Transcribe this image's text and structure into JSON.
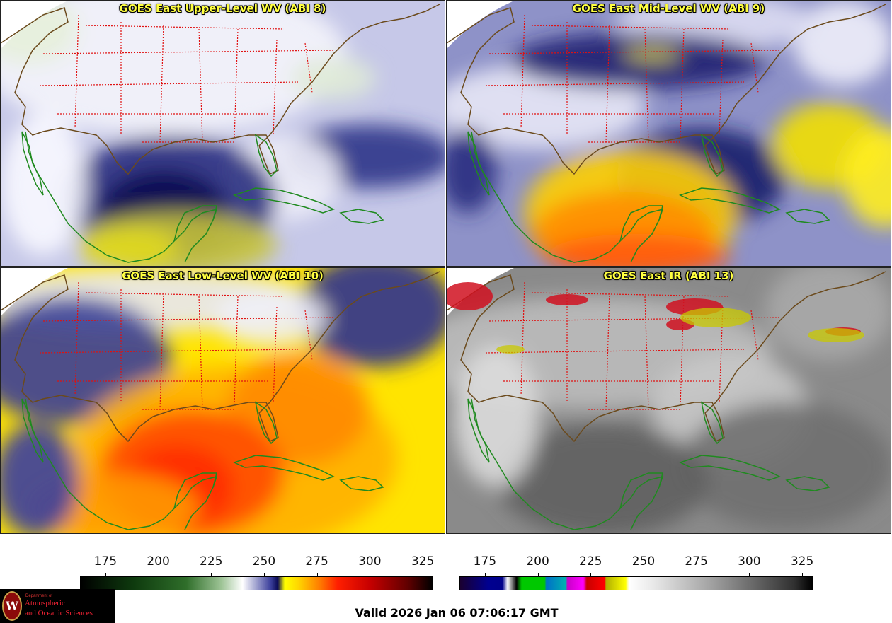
{
  "panels": [
    {
      "id": "p1",
      "title": "GOES East Upper-Level WV (ABI 8)",
      "scheme": "wv",
      "base": "#c6c8e8",
      "blobs": [
        [
          "#f4f4fb",
          230,
          80,
          260,
          110
        ],
        [
          "#e6f0dc",
          40,
          40,
          70,
          50
        ],
        [
          "#dfead7",
          470,
          110,
          60,
          30
        ],
        [
          "#2e3488",
          520,
          220,
          120,
          45
        ],
        [
          "#f0f0f8",
          400,
          250,
          80,
          60
        ],
        [
          "#2a2f80",
          240,
          280,
          150,
          90
        ],
        [
          "#0c0e50",
          230,
          300,
          90,
          60
        ],
        [
          "#c8c43a",
          250,
          345,
          140,
          45
        ],
        [
          "#e0d820",
          180,
          350,
          70,
          30
        ],
        [
          "#f8f8ff",
          60,
          260,
          60,
          100
        ]
      ]
    },
    {
      "id": "p2",
      "title": "GOES East Mid-Level WV (ABI 9)",
      "scheme": "wv",
      "base": "#8e92c8",
      "blobs": [
        [
          "#e8e8f6",
          130,
          150,
          150,
          60
        ],
        [
          "#f0f0fa",
          560,
          60,
          70,
          60
        ],
        [
          "#ddddf2",
          380,
          30,
          140,
          40
        ],
        [
          "#1c1f70",
          270,
          85,
          180,
          40
        ],
        [
          "#d0c840",
          290,
          75,
          40,
          10
        ],
        [
          "#1a1e6a",
          360,
          250,
          120,
          70
        ],
        [
          "#f2e000",
          540,
          205,
          80,
          60
        ],
        [
          "#ffd000",
          260,
          300,
          150,
          90
        ],
        [
          "#ff8c00",
          250,
          330,
          130,
          60
        ],
        [
          "#ff5a10",
          270,
          360,
          130,
          30
        ],
        [
          "#ffee20",
          620,
          250,
          60,
          70
        ],
        [
          "#2a2f80",
          30,
          240,
          40,
          60
        ]
      ]
    },
    {
      "id": "p3",
      "title": "GOES East Low-Level WV (ABI 10)",
      "scheme": "wv",
      "base": "#ffe400",
      "blobs": [
        [
          "#e8e8f4",
          200,
          45,
          240,
          45
        ],
        [
          "#3a3f98",
          100,
          130,
          140,
          90
        ],
        [
          "#2d3290",
          530,
          60,
          110,
          80
        ],
        [
          "#f0f0f8",
          380,
          70,
          80,
          40
        ],
        [
          "#ffb000",
          330,
          270,
          230,
          130
        ],
        [
          "#ff8a00",
          420,
          200,
          100,
          80
        ],
        [
          "#ff4a00",
          270,
          290,
          130,
          90
        ],
        [
          "#ff2a00",
          250,
          310,
          80,
          60
        ],
        [
          "#ff9a00",
          160,
          340,
          120,
          50
        ],
        [
          "#3a3fa0",
          50,
          300,
          60,
          80
        ]
      ]
    },
    {
      "id": "p4",
      "title": "GOES East IR (ABI 13)",
      "scheme": "ir",
      "base": "#8a8a8a",
      "blobs": [
        [
          "#bdbdbd",
          200,
          120,
          260,
          80
        ],
        [
          "#c8c8c8",
          400,
          200,
          110,
          80
        ],
        [
          "#707070",
          480,
          280,
          150,
          90
        ],
        [
          "#5f5f5f",
          220,
          300,
          150,
          80
        ],
        [
          "#a9a9a9",
          540,
          60,
          90,
          70
        ],
        [
          "#dcdcdc",
          70,
          210,
          60,
          100
        ]
      ]
    }
  ],
  "colorbar_left": {
    "ticks": [
      "175",
      "200",
      "225",
      "250",
      "275",
      "300",
      "325"
    ]
  },
  "colorbar_right": {
    "ticks": [
      "175",
      "200",
      "225",
      "250",
      "275",
      "300",
      "325"
    ]
  },
  "logo": {
    "line1": "Department of",
    "line2": "Atmospheric",
    "line3": "and Oceanic Sciences",
    "seal": "W"
  },
  "valid_text": "Valid 2026 Jan 06 07:06:17 GMT"
}
